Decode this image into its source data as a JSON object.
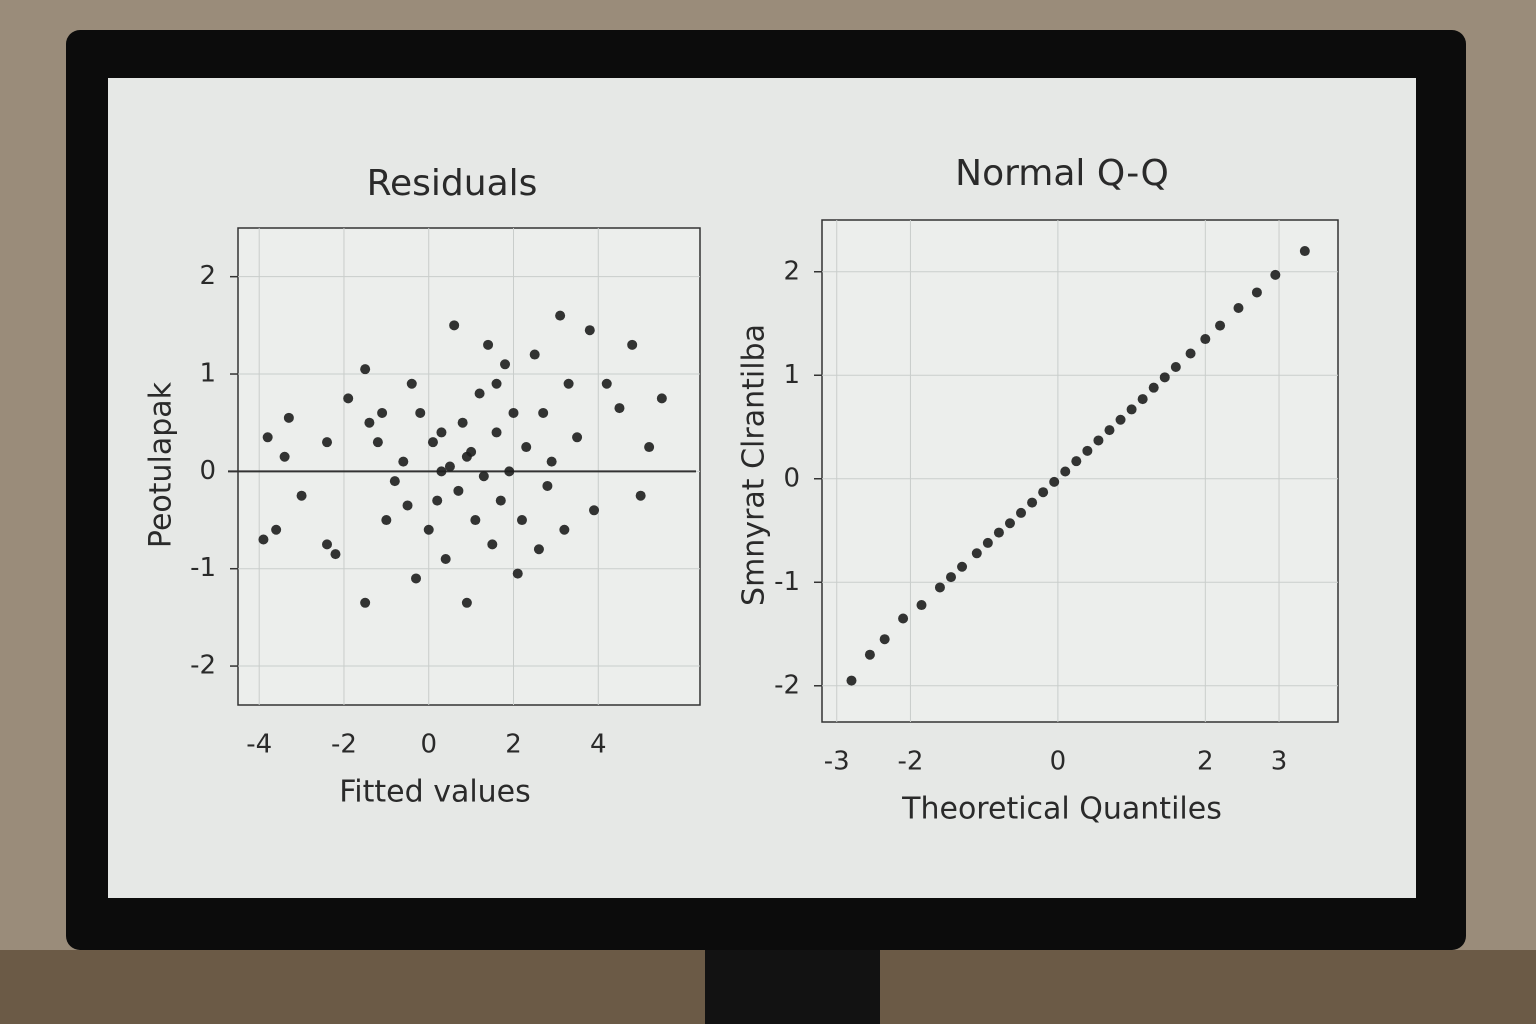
{
  "chart_data": [
    {
      "type": "scatter",
      "title": "Residuals",
      "x_label": "Fitted values",
      "y_label": "Peotulapak",
      "xlim": [
        -4.5,
        6.4
      ],
      "ylim": [
        -2.4,
        2.5
      ],
      "xticks": [
        -4,
        -2,
        0,
        2,
        4
      ],
      "yticks": [
        -2,
        -1,
        0,
        1,
        2
      ],
      "grid": true,
      "hline": 0,
      "color": "#1e1e1e",
      "x": [
        -3.9,
        -3.6,
        -3.8,
        -3.3,
        -3.4,
        -3.0,
        -2.4,
        -2.2,
        -2.4,
        -1.9,
        -1.5,
        -1.5,
        -1.4,
        -1.2,
        -1.0,
        -0.8,
        -0.6,
        -0.4,
        -0.3,
        -0.2,
        0.0,
        0.1,
        0.2,
        0.3,
        0.4,
        0.5,
        0.6,
        0.7,
        0.8,
        0.9,
        1.0,
        1.1,
        1.2,
        1.3,
        1.4,
        1.5,
        1.6,
        1.7,
        1.8,
        1.9,
        2.0,
        2.1,
        2.2,
        2.3,
        2.5,
        2.6,
        2.7,
        2.9,
        3.1,
        3.2,
        3.3,
        3.5,
        3.8,
        3.9,
        4.2,
        4.5,
        4.8,
        5.0,
        5.2,
        5.5,
        0.3,
        0.9,
        -0.5,
        1.6,
        -1.1,
        2.8
      ],
      "values": [
        -0.7,
        -0.6,
        0.35,
        0.55,
        0.15,
        -0.25,
        -0.75,
        -0.85,
        0.3,
        0.75,
        1.05,
        -1.35,
        0.5,
        0.3,
        -0.5,
        -0.1,
        0.1,
        0.9,
        -1.1,
        0.6,
        -0.6,
        0.3,
        -0.3,
        0.4,
        -0.9,
        0.05,
        1.5,
        -0.2,
        0.5,
        -1.35,
        0.2,
        -0.5,
        0.8,
        -0.05,
        1.3,
        -0.75,
        0.4,
        -0.3,
        1.1,
        0.0,
        0.6,
        -1.05,
        -0.5,
        0.25,
        1.2,
        -0.8,
        0.6,
        0.1,
        1.6,
        -0.6,
        0.9,
        0.35,
        1.45,
        -0.4,
        0.9,
        0.65,
        1.3,
        -0.25,
        0.25,
        0.75,
        0.0,
        0.15,
        -0.35,
        0.9,
        0.6,
        -0.15
      ]
    },
    {
      "type": "scatter",
      "title": "Normal Q-Q",
      "x_label": "Theoretical Quantiles",
      "y_label": "Smnyrat Clrantilba",
      "xlim": [
        -3.2,
        3.8
      ],
      "ylim": [
        -2.35,
        2.5
      ],
      "xticks": [
        -3,
        -2,
        0,
        2,
        3
      ],
      "yticks": [
        -2,
        -1,
        0,
        1,
        2
      ],
      "grid": true,
      "color": "#1e1e1e",
      "x": [
        -2.8,
        -2.55,
        -2.35,
        -2.1,
        -1.85,
        -1.6,
        -1.45,
        -1.3,
        -1.1,
        -0.95,
        -0.8,
        -0.65,
        -0.5,
        -0.35,
        -0.2,
        -0.05,
        0.1,
        0.25,
        0.4,
        0.55,
        0.7,
        0.85,
        1.0,
        1.15,
        1.3,
        1.45,
        1.6,
        1.8,
        2.0,
        2.2,
        2.45,
        2.7,
        2.95,
        3.35
      ],
      "values": [
        -1.95,
        -1.7,
        -1.55,
        -1.35,
        -1.22,
        -1.05,
        -0.95,
        -0.85,
        -0.72,
        -0.62,
        -0.52,
        -0.43,
        -0.33,
        -0.23,
        -0.13,
        -0.03,
        0.07,
        0.17,
        0.27,
        0.37,
        0.47,
        0.57,
        0.67,
        0.77,
        0.88,
        0.98,
        1.08,
        1.21,
        1.35,
        1.48,
        1.65,
        1.8,
        1.97,
        2.2
      ]
    }
  ]
}
